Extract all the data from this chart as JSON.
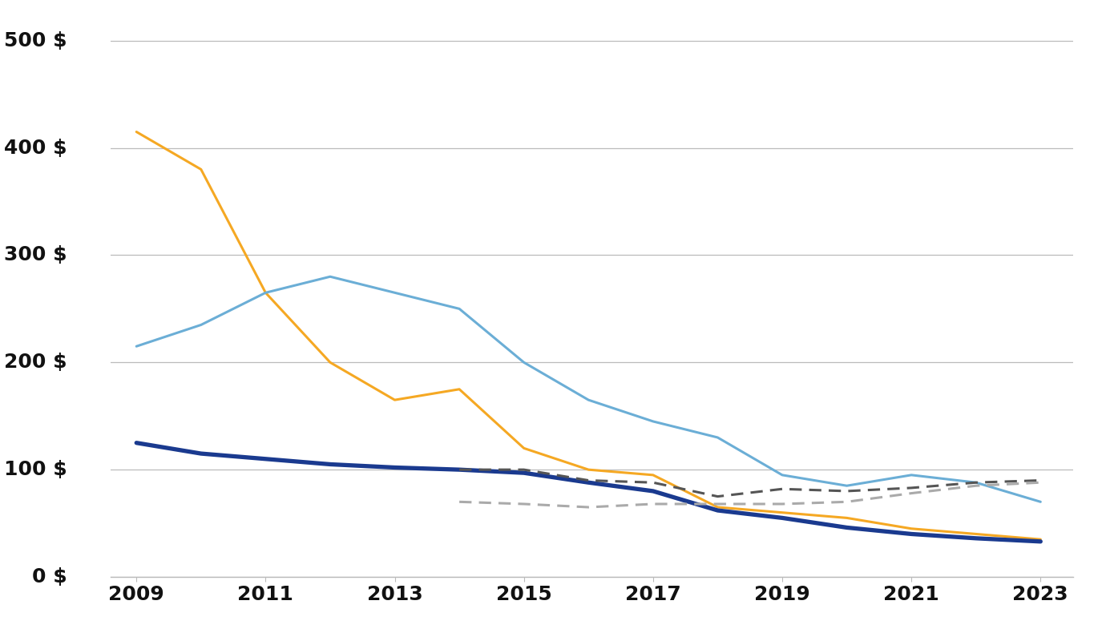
{
  "years_solar": [
    2009,
    2010,
    2011,
    2012,
    2013,
    2014,
    2015,
    2016,
    2017,
    2018,
    2019,
    2020,
    2021,
    2022,
    2023
  ],
  "solar": [
    415,
    380,
    265,
    200,
    165,
    175,
    120,
    100,
    95,
    65,
    60,
    55,
    45,
    40,
    35
  ],
  "years_offshore": [
    2009,
    2010,
    2011,
    2012,
    2013,
    2014,
    2015,
    2016,
    2017,
    2018,
    2019,
    2020,
    2021,
    2022,
    2023
  ],
  "offshore": [
    215,
    235,
    265,
    280,
    265,
    250,
    200,
    165,
    145,
    130,
    95,
    85,
    95,
    88,
    70
  ],
  "years_onshore": [
    2009,
    2010,
    2011,
    2012,
    2013,
    2014,
    2015,
    2016,
    2017,
    2018,
    2019,
    2020,
    2021,
    2022,
    2023
  ],
  "onshore": [
    125,
    115,
    110,
    105,
    102,
    100,
    97,
    88,
    80,
    62,
    55,
    46,
    40,
    36,
    33
  ],
  "years_dark_dash": [
    2014,
    2015,
    2016,
    2017,
    2018,
    2019,
    2020,
    2021,
    2022,
    2023
  ],
  "dark_dash": [
    100,
    100,
    90,
    88,
    75,
    82,
    80,
    83,
    88,
    90
  ],
  "years_light_dash": [
    2014,
    2015,
    2016,
    2017,
    2018,
    2019,
    2020,
    2021,
    2022,
    2023
  ],
  "light_dash": [
    70,
    68,
    65,
    68,
    68,
    68,
    70,
    78,
    85,
    88
  ],
  "color_solar": "#F5A823",
  "color_offshore": "#6BAED6",
  "color_onshore": "#1A3A8F",
  "color_dark_dash": "#555555",
  "color_light_dash": "#AAAAAA",
  "ylim": [
    0,
    520
  ],
  "yticks": [
    0,
    100,
    200,
    300,
    400,
    500
  ],
  "xlim": [
    2008.6,
    2023.5
  ],
  "xticks": [
    2009,
    2011,
    2013,
    2015,
    2017,
    2019,
    2021,
    2023
  ],
  "bg_color": "#FFFFFF",
  "grid_color": "#BBBBBB",
  "linewidth_thin": 2.2,
  "linewidth_thick": 3.8
}
